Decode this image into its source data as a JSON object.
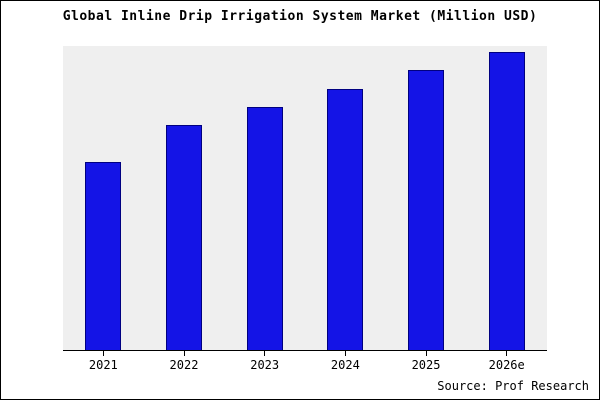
{
  "title": "Global Inline Drip Irrigation System Market (Million USD)",
  "source": "Source: Prof Research",
  "colors": {
    "bar_fill": "#1414e6",
    "bar_edge": "#000080",
    "plot_background": "#efefef",
    "frame_border": "#000000"
  },
  "chart_data": {
    "type": "bar",
    "title": "Global Inline Drip Irrigation System Market (Million USD)",
    "categories": [
      "2021",
      "2022",
      "2023",
      "2024",
      "2025",
      "2026e"
    ],
    "values": [
      62,
      74,
      80,
      86,
      92,
      98
    ],
    "xlabel": "",
    "ylabel": "",
    "ylim": [
      0,
      100
    ],
    "grid": false,
    "legend": false,
    "y_axis_labels_visible": false,
    "annotation": "Source: Prof Research"
  }
}
